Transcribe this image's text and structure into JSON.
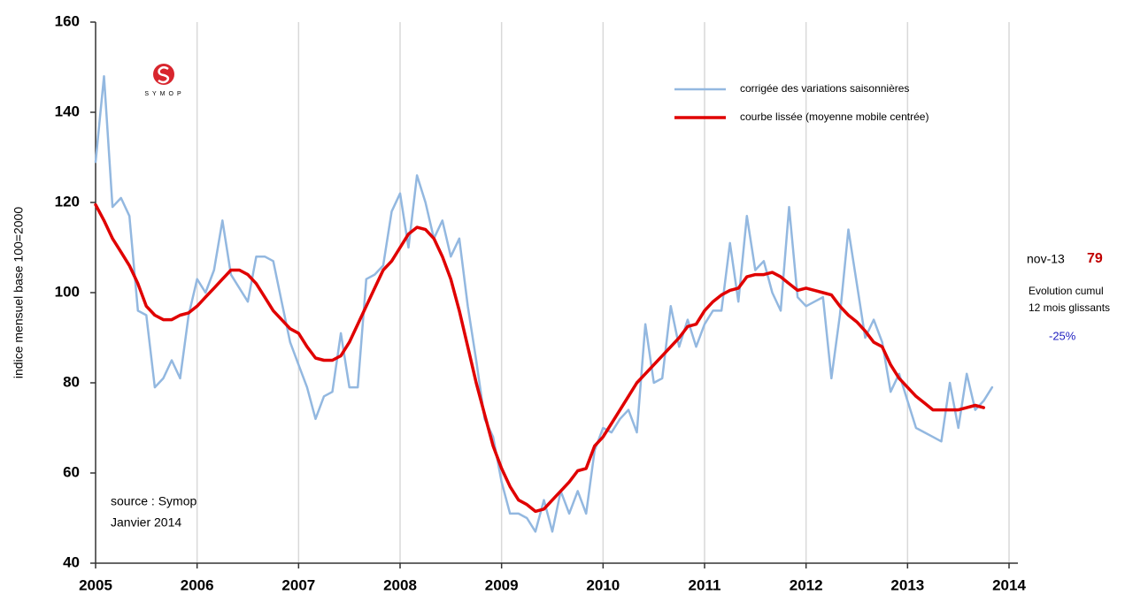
{
  "chart_data": {
    "type": "line",
    "ylabel": "indice mensuel base 100=2000",
    "logo": "SYMOP",
    "source": [
      "source :  Symop",
      "Janvier 2014"
    ],
    "side_note": {
      "date": "nov-13",
      "value": 79,
      "text": [
        "Evolution cumul",
        "12 mois glissants"
      ],
      "change": "-25%"
    },
    "xlim": [
      2005,
      2014
    ],
    "xticks": [
      2005,
      2006,
      2007,
      2008,
      2009,
      2010,
      2011,
      2012,
      2013,
      2014
    ],
    "ylim": [
      40,
      160
    ],
    "yticks": [
      40,
      60,
      80,
      100,
      120,
      140,
      160
    ],
    "grid": true,
    "x": [
      2005,
      2005.083,
      2005.167,
      2005.25,
      2005.333,
      2005.417,
      2005.5,
      2005.583,
      2005.667,
      2005.75,
      2005.833,
      2005.917,
      2006,
      2006.083,
      2006.167,
      2006.25,
      2006.333,
      2006.417,
      2006.5,
      2006.583,
      2006.667,
      2006.75,
      2006.833,
      2006.917,
      2007,
      2007.083,
      2007.167,
      2007.25,
      2007.333,
      2007.417,
      2007.5,
      2007.583,
      2007.667,
      2007.75,
      2007.833,
      2007.917,
      2008,
      2008.083,
      2008.167,
      2008.25,
      2008.333,
      2008.417,
      2008.5,
      2008.583,
      2008.667,
      2008.75,
      2008.833,
      2008.917,
      2009,
      2009.083,
      2009.167,
      2009.25,
      2009.333,
      2009.417,
      2009.5,
      2009.583,
      2009.667,
      2009.75,
      2009.833,
      2009.917,
      2010,
      2010.083,
      2010.167,
      2010.25,
      2010.333,
      2010.417,
      2010.5,
      2010.583,
      2010.667,
      2010.75,
      2010.833,
      2010.917,
      2011,
      2011.083,
      2011.167,
      2011.25,
      2011.333,
      2011.417,
      2011.5,
      2011.583,
      2011.667,
      2011.75,
      2011.833,
      2011.917,
      2012,
      2012.083,
      2012.167,
      2012.25,
      2012.333,
      2012.417,
      2012.5,
      2012.583,
      2012.667,
      2012.75,
      2012.833,
      2012.917,
      2013,
      2013.083,
      2013.167,
      2013.25,
      2013.333,
      2013.417,
      2013.5,
      2013.583,
      2013.667,
      2013.75,
      2013.833
    ],
    "series": [
      {
        "name": "corrigée des variations saisonnières",
        "color": "#93b8e0",
        "width": 2.5,
        "values": [
          129,
          148,
          119,
          121,
          117,
          96,
          95,
          79,
          81,
          85,
          81,
          95,
          103,
          100,
          105,
          116,
          104,
          101,
          98,
          108,
          108,
          107,
          98,
          89,
          84,
          79,
          72,
          77,
          78,
          91,
          79,
          79,
          103,
          104,
          106,
          118,
          122,
          110,
          126,
          120,
          112,
          116,
          108,
          112,
          97,
          85,
          72,
          68,
          58,
          51,
          51,
          50,
          47,
          54,
          47,
          56,
          51,
          56,
          51,
          65,
          70,
          69,
          72,
          74,
          69,
          93,
          80,
          81,
          97,
          88,
          94,
          88,
          93,
          96,
          96,
          111,
          98,
          117,
          105,
          107,
          100,
          96,
          119,
          99,
          97,
          98,
          99,
          81,
          95,
          114,
          102,
          90,
          94,
          89,
          78,
          82,
          76,
          70,
          69,
          68,
          67,
          80,
          70,
          82,
          74,
          76,
          79
        ]
      },
      {
        "name": "courbe lissée (moyenne mobile centrée)",
        "color": "#e00000",
        "width": 3.5,
        "values": [
          119.5,
          116,
          112,
          109,
          106,
          102,
          97,
          95,
          94,
          94,
          95,
          95.5,
          97,
          99,
          101,
          103,
          105,
          105,
          104,
          102,
          99,
          96,
          94,
          92,
          91,
          88,
          85.5,
          85,
          85,
          86,
          89,
          93,
          97,
          101,
          105,
          107,
          110,
          113,
          114.5,
          114,
          112,
          108,
          103,
          96,
          88,
          80,
          73,
          66,
          61,
          57,
          54,
          53,
          51.5,
          52,
          54,
          56,
          58,
          60.5,
          61,
          66,
          68,
          71,
          74,
          77,
          80,
          82,
          84,
          86,
          88,
          90,
          92.5,
          93,
          96,
          98,
          99.5,
          100.5,
          101,
          103.5,
          104,
          104,
          104.5,
          103.5,
          102,
          100.5,
          101,
          100.5,
          100,
          99.5,
          97,
          95,
          93.5,
          91.5,
          89,
          88,
          84,
          81,
          79,
          77,
          75.5,
          74,
          74,
          74,
          74,
          74.5,
          75,
          74.5,
          null
        ]
      }
    ]
  }
}
